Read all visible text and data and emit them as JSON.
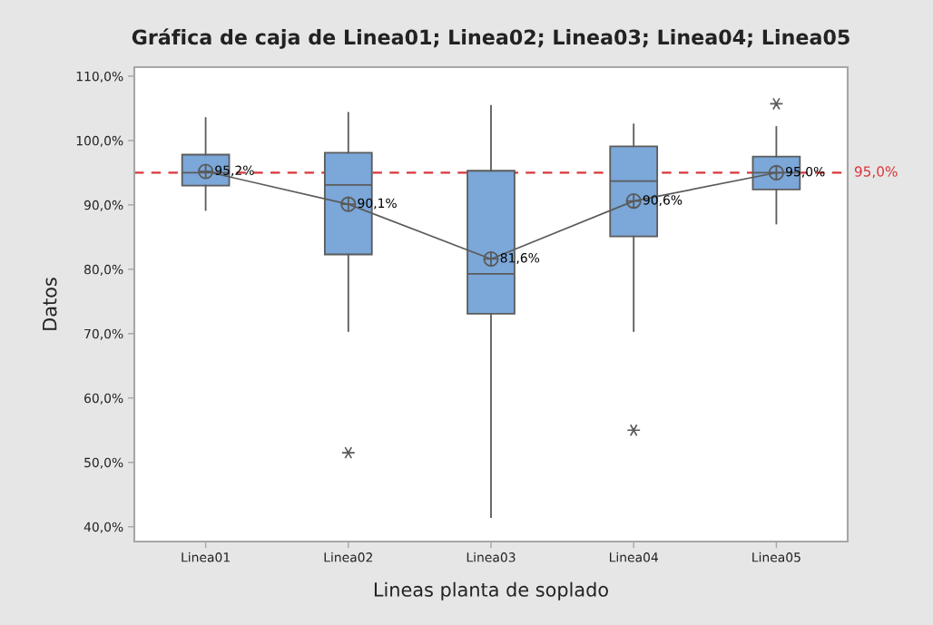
{
  "chart_data": {
    "type": "box",
    "title": "Gráfica de caja de Linea01; Linea02; Linea03; Linea04; Linea05",
    "xlabel": "Lineas planta de soplado",
    "ylabel": "Datos",
    "categories": [
      "Linea01",
      "Linea02",
      "Linea03",
      "Linea04",
      "Linea05"
    ],
    "series": [
      {
        "color": "#7ba7d9",
        "boxes": [
          {
            "low": 89.2,
            "q1": 93.0,
            "median": 95.0,
            "q3": 97.8,
            "high": 103.5
          },
          {
            "low": 70.4,
            "q1": 82.3,
            "median": 93.1,
            "q3": 98.1,
            "high": 104.3,
            "outliers": [
              51.5
            ]
          },
          {
            "low": 41.5,
            "q1": 73.1,
            "median": 79.3,
            "q3": 95.3,
            "high": 105.4
          },
          {
            "low": 70.4,
            "q1": 85.1,
            "median": 93.7,
            "q3": 99.1,
            "high": 102.5,
            "outliers": [
              55.0
            ]
          },
          {
            "low": 87.1,
            "q1": 92.4,
            "median": 95.0,
            "q3": 97.5,
            "high": 102.1,
            "outliers": [
              105.7
            ]
          }
        ]
      },
      {
        "type": "line",
        "color": "#5a5a5a",
        "marker": "cross",
        "values": [
          95.2,
          90.1,
          81.6,
          90.6,
          95.0
        ],
        "value_labels": [
          "95,2%",
          "90,1%",
          "81,6%",
          "90,6%",
          "95,0%"
        ]
      }
    ],
    "ylim": [
      37.7,
      111.4
    ],
    "yticks": [
      {
        "value": 40,
        "label": "40,0%"
      },
      {
        "value": 50,
        "label": "50,0%"
      },
      {
        "value": 60,
        "label": "60,0%"
      },
      {
        "value": 70,
        "label": "70,0%"
      },
      {
        "value": 80,
        "label": "80,0%"
      },
      {
        "value": 90,
        "label": "90,0%"
      },
      {
        "value": 100,
        "label": "100,0%"
      },
      {
        "value": 110,
        "label": "110,0%"
      }
    ],
    "ref_lines": [
      {
        "axis": "y",
        "value": 95.0,
        "label": "95,0%",
        "color": "#d9363a",
        "line_style": "dashed"
      }
    ]
  }
}
